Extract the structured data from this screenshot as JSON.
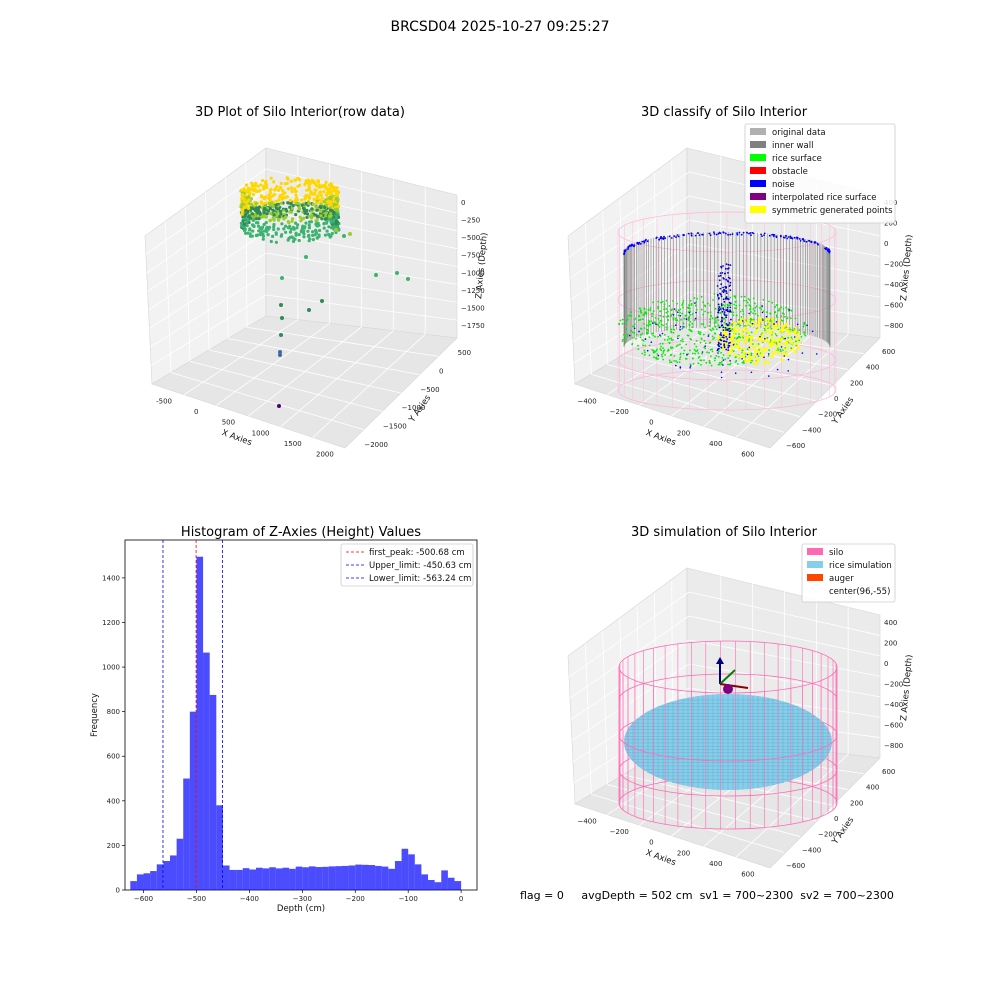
{
  "figure": {
    "suptitle": "BRCSD04 2025-10-27 09:25:27"
  },
  "panels": {
    "raw": {
      "title": "3D Plot of Silo Interior(row data)",
      "xlabel": "X Axies",
      "ylabel": "Y Axies",
      "zlabel": "Z Axies (Depth)",
      "x_ticks": [
        "-500",
        "0",
        "500",
        "1000",
        "1500",
        "2000"
      ],
      "y_ticks": [
        "500",
        "0",
        "−500",
        "−1000",
        "−1500",
        "−2000"
      ],
      "z_ticks": [
        "0",
        "−250",
        "−500",
        "−750",
        "−1000",
        "−1250",
        "−1500",
        "−1750"
      ]
    },
    "classify": {
      "title": "3D classify of Silo Interior",
      "xlabel": "X Axies",
      "ylabel": "Y Axies",
      "zlabel": "Z Axies (Depth)",
      "x_ticks": [
        "−400",
        "−200",
        "0",
        "200",
        "400",
        "600"
      ],
      "y_ticks": [
        "600",
        "400",
        "200",
        "0",
        "−200",
        "−400",
        "−600"
      ],
      "z_ticks": [
        "400",
        "200",
        "0",
        "−200",
        "−400",
        "−600",
        "−800"
      ],
      "legend": [
        {
          "label": "original data",
          "color": "#b0b0b0"
        },
        {
          "label": "inner wall",
          "color": "#808080"
        },
        {
          "label": "rice surface",
          "color": "#00ff00"
        },
        {
          "label": "obstacle",
          "color": "#ff0000"
        },
        {
          "label": "noise",
          "color": "#0000ff"
        },
        {
          "label": "interpolated rice surface",
          "color": "#800080"
        },
        {
          "label": "symmetric generated points",
          "color": "#ffff00"
        }
      ]
    },
    "simulation": {
      "title": "3D simulation of Silo Interior",
      "xlabel": "X Axies",
      "ylabel": "Y Axies",
      "zlabel": "Z Axies (Depth)",
      "x_ticks": [
        "−400",
        "−200",
        "0",
        "200",
        "400",
        "600"
      ],
      "y_ticks": [
        "600",
        "400",
        "200",
        "0",
        "−200",
        "−400",
        "−600"
      ],
      "z_ticks": [
        "400",
        "200",
        "0",
        "−200",
        "−400",
        "−600",
        "−800"
      ],
      "legend": [
        {
          "label": "silo",
          "color": "#ff69b4"
        },
        {
          "label": "rice simulation",
          "color": "#87ceeb"
        },
        {
          "label": "auger",
          "color": "#ff4500"
        },
        {
          "label": "center(96,-55)",
          "color": "#ffffff"
        }
      ]
    }
  },
  "chart_data": {
    "type": "bar",
    "title": "Histogram of Z-Axies (Height) Values",
    "xlabel": "Depth (cm)",
    "ylabel": "Frequency",
    "xlim": [
      -635,
      30
    ],
    "ylim": [
      0,
      1570
    ],
    "x_ticks": [
      -600,
      -500,
      -400,
      -300,
      -200,
      -100,
      0
    ],
    "y_ticks": [
      0,
      200,
      400,
      600,
      800,
      1000,
      1200,
      1400
    ],
    "bar_color": "#0000ff",
    "bin_width": 12.5,
    "bins": [
      [
        -625,
        40
      ],
      [
        -612.5,
        70
      ],
      [
        -600,
        75
      ],
      [
        -587.5,
        85
      ],
      [
        -575,
        115
      ],
      [
        -562.5,
        130
      ],
      [
        -550,
        155
      ],
      [
        -537.5,
        230
      ],
      [
        -525,
        500
      ],
      [
        -512.5,
        800
      ],
      [
        -500,
        1495
      ],
      [
        -487.5,
        1065
      ],
      [
        -475,
        875
      ],
      [
        -462.5,
        380
      ],
      [
        -450,
        110
      ],
      [
        -437.5,
        90
      ],
      [
        -425,
        90
      ],
      [
        -412.5,
        98
      ],
      [
        -400,
        92
      ],
      [
        -387.5,
        100
      ],
      [
        -375,
        97
      ],
      [
        -362.5,
        102
      ],
      [
        -350,
        97
      ],
      [
        -337.5,
        100
      ],
      [
        -325,
        95
      ],
      [
        -312.5,
        105
      ],
      [
        -300,
        102
      ],
      [
        -287.5,
        106
      ],
      [
        -275,
        103
      ],
      [
        -262.5,
        104
      ],
      [
        -250,
        106
      ],
      [
        -237.5,
        107
      ],
      [
        -225,
        108
      ],
      [
        -212.5,
        110
      ],
      [
        -200,
        114
      ],
      [
        -187.5,
        113
      ],
      [
        -175,
        112
      ],
      [
        -162.5,
        108
      ],
      [
        -150,
        105
      ],
      [
        -137.5,
        95
      ],
      [
        -125,
        130
      ],
      [
        -112.5,
        185
      ],
      [
        -100,
        160
      ],
      [
        -87.5,
        115
      ],
      [
        -75,
        70
      ],
      [
        -62.5,
        45
      ],
      [
        -50,
        35
      ],
      [
        -37.5,
        88
      ],
      [
        -25,
        55
      ],
      [
        -12.5,
        40
      ]
    ],
    "lines": [
      {
        "label": "first_peak: -500.68 cm",
        "x": -500.68,
        "color": "#ff0000"
      },
      {
        "label": "Upper_limit: -450.63 cm",
        "x": -450.63,
        "color": "#0000ff"
      },
      {
        "label": "Lower_limit: -563.24 cm",
        "x": -563.24,
        "color": "#0000ff"
      }
    ],
    "legend_position": "upper right"
  },
  "footer": {
    "flag": "flag = 0",
    "avg_depth": "avgDepth = 502 cm",
    "sv1": "sv1 = 700~2300",
    "sv2": "sv2 = 700~2300"
  }
}
